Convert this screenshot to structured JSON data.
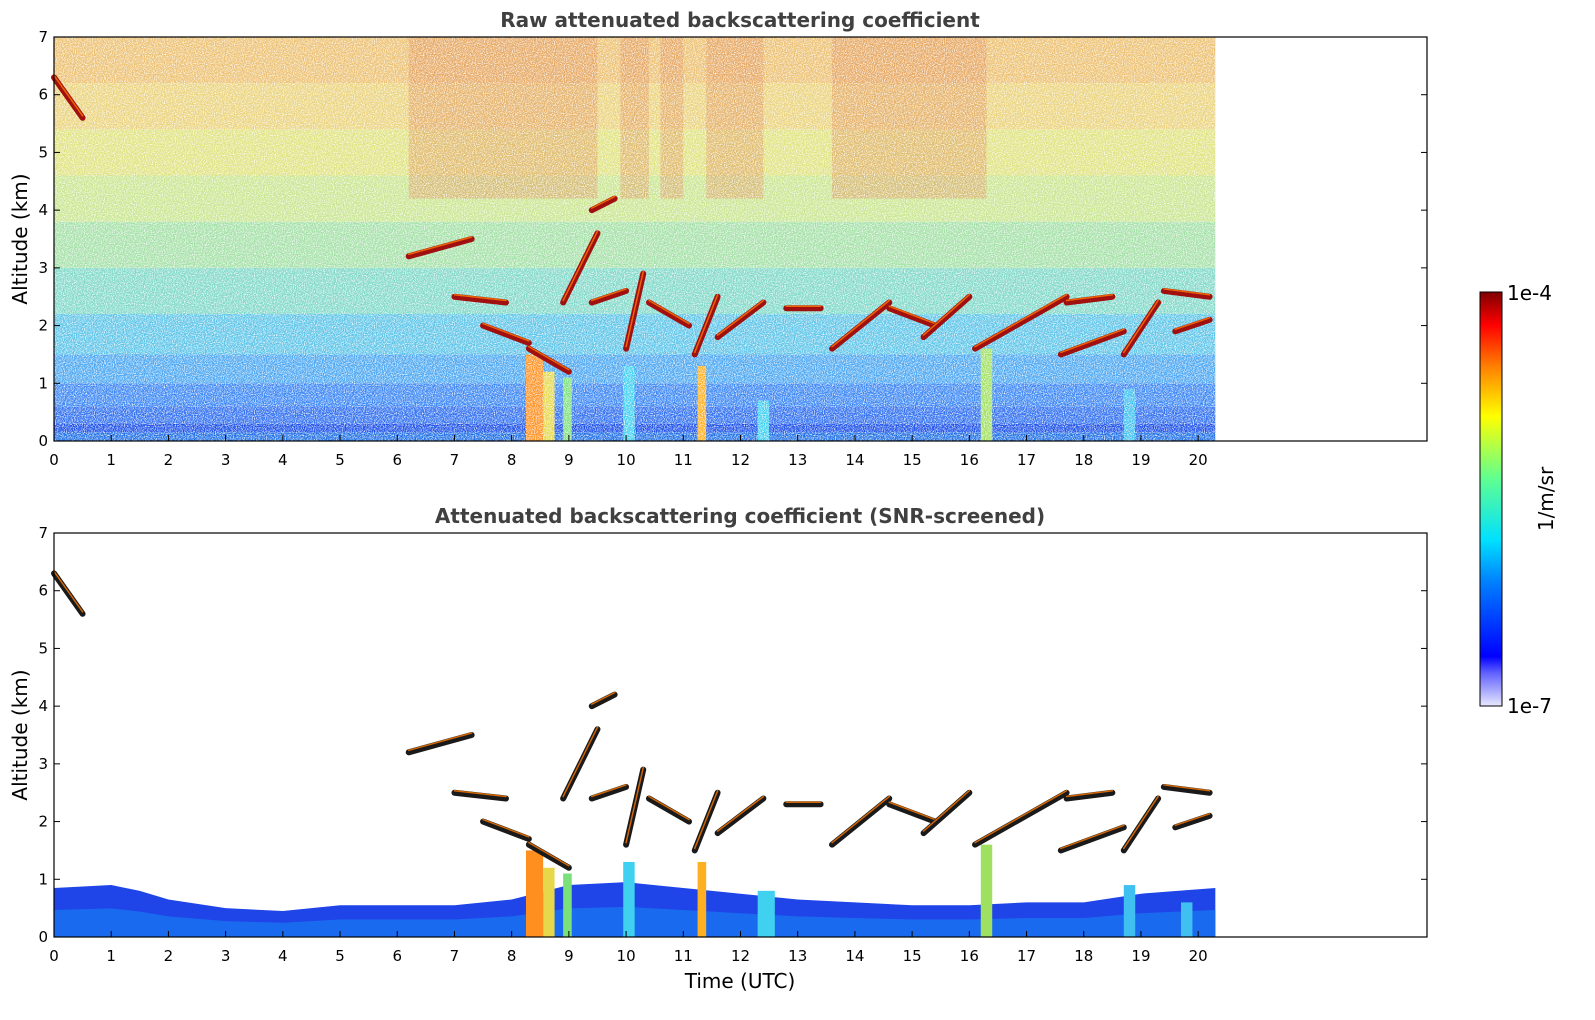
{
  "chart_data": [
    {
      "type": "heatmap",
      "title": "Raw attenuated backscattering coefficient",
      "xlabel": "",
      "ylabel": "Altitude (km)",
      "xlim": [
        0,
        24
      ],
      "ylim": [
        0,
        7
      ],
      "x_ticks": [
        "0",
        "1",
        "2",
        "3",
        "4",
        "5",
        "6",
        "7",
        "8",
        "9",
        "10",
        "11",
        "12",
        "13",
        "14",
        "15",
        "16",
        "17",
        "18",
        "19",
        "20"
      ],
      "y_ticks": [
        "0",
        "1",
        "2",
        "3",
        "4",
        "5",
        "6",
        "7"
      ],
      "data_extent_hours": [
        0,
        20.3
      ],
      "cloud_layers": [
        {
          "t_start": 0.0,
          "t_end": 0.5,
          "alt_start": 6.3,
          "alt_end": 5.6
        },
        {
          "t_start": 6.2,
          "t_end": 7.3,
          "alt_start": 3.2,
          "alt_end": 3.5
        },
        {
          "t_start": 7.0,
          "t_end": 7.9,
          "alt_start": 2.5,
          "alt_end": 2.4
        },
        {
          "t_start": 7.5,
          "t_end": 8.3,
          "alt_start": 2.0,
          "alt_end": 1.7
        },
        {
          "t_start": 8.3,
          "t_end": 9.0,
          "alt_start": 1.6,
          "alt_end": 1.2
        },
        {
          "t_start": 8.9,
          "t_end": 9.5,
          "alt_start": 2.4,
          "alt_end": 3.6
        },
        {
          "t_start": 9.4,
          "t_end": 9.8,
          "alt_start": 4.0,
          "alt_end": 4.2
        },
        {
          "t_start": 9.4,
          "t_end": 10.0,
          "alt_start": 2.4,
          "alt_end": 2.6
        },
        {
          "t_start": 10.0,
          "t_end": 10.3,
          "alt_start": 1.6,
          "alt_end": 2.9
        },
        {
          "t_start": 10.4,
          "t_end": 11.1,
          "alt_start": 2.4,
          "alt_end": 2.0
        },
        {
          "t_start": 11.2,
          "t_end": 11.6,
          "alt_start": 1.5,
          "alt_end": 2.5
        },
        {
          "t_start": 11.6,
          "t_end": 12.4,
          "alt_start": 1.8,
          "alt_end": 2.4
        },
        {
          "t_start": 12.8,
          "t_end": 13.4,
          "alt_start": 2.3,
          "alt_end": 2.3
        },
        {
          "t_start": 13.6,
          "t_end": 14.6,
          "alt_start": 1.6,
          "alt_end": 2.4
        },
        {
          "t_start": 14.6,
          "t_end": 15.4,
          "alt_start": 2.3,
          "alt_end": 2.0
        },
        {
          "t_start": 15.2,
          "t_end": 16.0,
          "alt_start": 1.8,
          "alt_end": 2.5
        },
        {
          "t_start": 16.1,
          "t_end": 17.7,
          "alt_start": 1.6,
          "alt_end": 2.5
        },
        {
          "t_start": 17.7,
          "t_end": 18.5,
          "alt_start": 2.4,
          "alt_end": 2.5
        },
        {
          "t_start": 17.6,
          "t_end": 18.7,
          "alt_start": 1.5,
          "alt_end": 1.9
        },
        {
          "t_start": 18.7,
          "t_end": 19.3,
          "alt_start": 1.5,
          "alt_end": 2.4
        },
        {
          "t_start": 19.4,
          "t_end": 20.2,
          "alt_start": 2.6,
          "alt_end": 2.5
        },
        {
          "t_start": 19.6,
          "t_end": 20.2,
          "alt_start": 1.9,
          "alt_end": 2.1
        }
      ]
    },
    {
      "type": "heatmap",
      "title": "Attenuated backscattering coefficient (SNR-screened)",
      "xlabel": "Time (UTC)",
      "ylabel": "Altitude (km)",
      "xlim": [
        0,
        24
      ],
      "ylim": [
        0,
        7
      ],
      "x_ticks": [
        "0",
        "1",
        "2",
        "3",
        "4",
        "5",
        "6",
        "7",
        "8",
        "9",
        "10",
        "11",
        "12",
        "13",
        "14",
        "15",
        "16",
        "17",
        "18",
        "19",
        "20"
      ],
      "y_ticks": [
        "0",
        "1",
        "2",
        "3",
        "4",
        "5",
        "6",
        "7"
      ],
      "data_extent_hours": [
        0,
        20.3
      ]
    }
  ],
  "colorbar": {
    "min_label": "1e-7",
    "max_label": "1e-4",
    "label": "1/m/sr",
    "colormap": "jet",
    "scale": "log"
  }
}
